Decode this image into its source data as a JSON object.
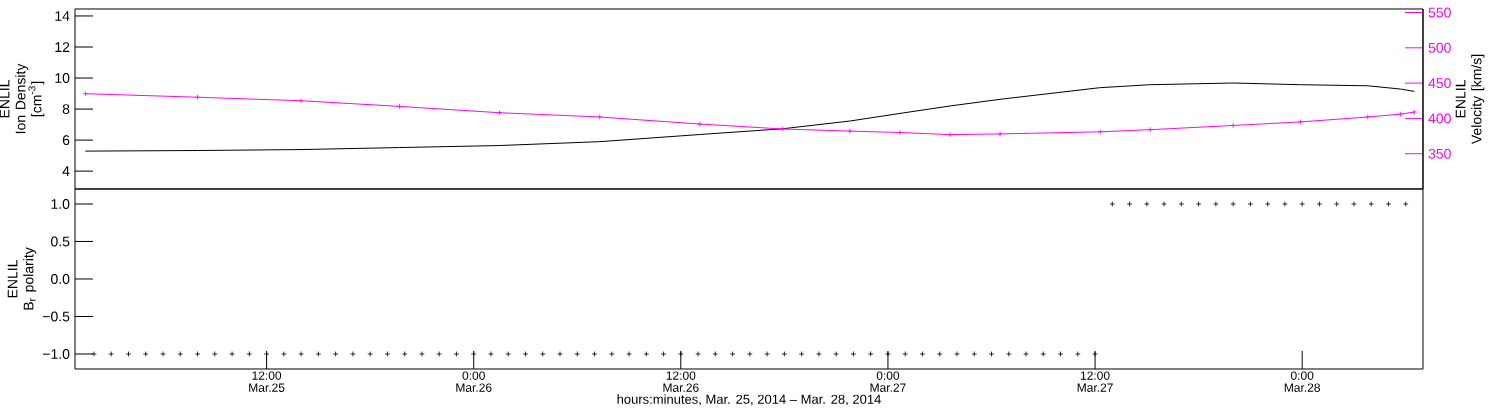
{
  "chart_data": [
    {
      "type": "line",
      "ylabel": "ENLIL Ion Density [cm$^{-3}$]",
      "y2label": "ENLIL Velocity [km/s]",
      "tick_labels": "y",
      "x": [
        "2014-03-25T01:30",
        "2014-03-25T08:00",
        "2014-03-25T14:00",
        "2014-03-25T19:42",
        "2014-03-26T01:30",
        "2014-03-26T07:18",
        "2014-03-26T13:06",
        "2014-03-26T17:54",
        "2014-03-26T21:48",
        "2014-03-27T00:42",
        "2014-03-27T03:36",
        "2014-03-27T06:30",
        "2014-03-27T12:18",
        "2014-03-27T15:12",
        "2014-03-27T20:00",
        "2014-03-27T23:54",
        "2014-03-28T03:48",
        "2014-03-28T05:42",
        "2014-03-28T06:30"
      ],
      "xlim": [
        "2014-03-25T00:54",
        "2014-03-28T07:00"
      ],
      "ylim": [
        2.85,
        14.45
      ],
      "yticks": [
        4,
        6,
        8,
        10,
        12,
        14
      ],
      "y2lim": [
        300,
        555
      ],
      "y2ticks": [
        350,
        400,
        450,
        500,
        550
      ],
      "series": [
        {
          "color": "#000000",
          "marker": "none",
          "values": [
            5.29,
            5.33,
            5.39,
            5.52,
            5.65,
            5.9,
            6.36,
            6.73,
            7.23,
            7.72,
            8.2,
            8.63,
            9.38,
            9.57,
            9.68,
            9.57,
            9.5,
            9.29,
            9.14
          ]
        },
        {
          "color": "#ff00ff",
          "axis": "y2",
          "marker": "cross",
          "values": [
            435,
            430,
            425,
            417,
            408,
            402,
            392,
            385,
            382,
            380,
            377,
            378,
            381,
            384,
            390,
            395,
            402,
            406,
            409
          ]
        }
      ]
    },
    {
      "type": "scatter",
      "xlabel": "hours:minutes, Mar. 25, 2014 – Mar. 28, 2014",
      "ylabel": "ENLIL B$_{r}$ polarity",
      "marker": "cross",
      "x": [
        "2014-03-25T02:00",
        "2014-03-25T03:00",
        "2014-03-25T04:00",
        "2014-03-25T05:00",
        "2014-03-25T06:00",
        "2014-03-25T07:00",
        "2014-03-25T08:00",
        "2014-03-25T09:00",
        "2014-03-25T10:00",
        "2014-03-25T11:00",
        "2014-03-25T12:00",
        "2014-03-25T13:00",
        "2014-03-25T14:00",
        "2014-03-25T15:00",
        "2014-03-25T16:00",
        "2014-03-25T17:00",
        "2014-03-25T18:00",
        "2014-03-25T19:00",
        "2014-03-25T20:00",
        "2014-03-25T21:00",
        "2014-03-25T22:00",
        "2014-03-25T23:00",
        "2014-03-26T00:00",
        "2014-03-26T01:00",
        "2014-03-26T02:00",
        "2014-03-26T03:00",
        "2014-03-26T04:00",
        "2014-03-26T05:00",
        "2014-03-26T06:00",
        "2014-03-26T07:00",
        "2014-03-26T08:00",
        "2014-03-26T09:00",
        "2014-03-26T10:00",
        "2014-03-26T11:00",
        "2014-03-26T12:00",
        "2014-03-26T13:00",
        "2014-03-26T14:00",
        "2014-03-26T15:00",
        "2014-03-26T16:00",
        "2014-03-26T17:00",
        "2014-03-26T18:00",
        "2014-03-26T19:00",
        "2014-03-26T20:00",
        "2014-03-26T21:00",
        "2014-03-26T22:00",
        "2014-03-26T23:00",
        "2014-03-27T00:00",
        "2014-03-27T01:00",
        "2014-03-27T02:00",
        "2014-03-27T03:00",
        "2014-03-27T04:00",
        "2014-03-27T05:00",
        "2014-03-27T06:00",
        "2014-03-27T07:00",
        "2014-03-27T08:00",
        "2014-03-27T09:00",
        "2014-03-27T10:00",
        "2014-03-27T11:00",
        "2014-03-27T12:00",
        "2014-03-27T13:00",
        "2014-03-27T14:00",
        "2014-03-27T15:00",
        "2014-03-27T16:00",
        "2014-03-27T17:00",
        "2014-03-27T18:00",
        "2014-03-27T19:00",
        "2014-03-27T20:00",
        "2014-03-27T21:00",
        "2014-03-27T22:00",
        "2014-03-27T23:00",
        "2014-03-28T00:00",
        "2014-03-28T01:00",
        "2014-03-28T02:00",
        "2014-03-28T03:00",
        "2014-03-28T04:00",
        "2014-03-28T05:00",
        "2014-03-28T06:00"
      ],
      "xlim": [
        "2014-03-25T00:54",
        "2014-03-28T07:00"
      ],
      "xticks": [
        {
          "value": "2014-03-25T12:00",
          "label": "12:00 Mar.25"
        },
        {
          "value": "2014-03-26T00:00",
          "label": "0:00 Mar.26"
        },
        {
          "value": "2014-03-26T12:00",
          "label": "12:00 Mar.26"
        },
        {
          "value": "2014-03-27T00:00",
          "label": "0:00 Mar.27"
        },
        {
          "value": "2014-03-27T12:00",
          "label": "12:00 Mar.27"
        },
        {
          "value": "2014-03-28T00:00",
          "label": "0:00 Mar.28"
        }
      ],
      "ylim": [
        -1.2,
        1.2
      ],
      "yticks": [
        {
          "value": -1,
          "label": "−1.0"
        },
        {
          "value": -0.5,
          "label": "−0.5"
        },
        {
          "value": 0,
          "label": "0.0"
        },
        {
          "value": 0.5,
          "label": "0.5"
        },
        {
          "value": 1,
          "label": "1.0"
        }
      ],
      "series": [
        {
          "color": "#000000",
          "values": [
            -1,
            -1,
            -1,
            -1,
            -1,
            -1,
            -1,
            -1,
            -1,
            -1,
            -1,
            -1,
            -1,
            -1,
            -1,
            -1,
            -1,
            -1,
            -1,
            -1,
            -1,
            -1,
            -1,
            -1,
            -1,
            -1,
            -1,
            -1,
            -1,
            -1,
            -1,
            -1,
            -1,
            -1,
            -1,
            -1,
            -1,
            -1,
            -1,
            -1,
            -1,
            -1,
            -1,
            -1,
            -1,
            -1,
            -1,
            -1,
            -1,
            -1,
            -1,
            -1,
            -1,
            -1,
            -1,
            -1,
            -1,
            -1,
            -1,
            1,
            1,
            1,
            1,
            1,
            1,
            1,
            1,
            1,
            1,
            1,
            1,
            1,
            1,
            1,
            1,
            1,
            1
          ]
        }
      ]
    }
  ]
}
